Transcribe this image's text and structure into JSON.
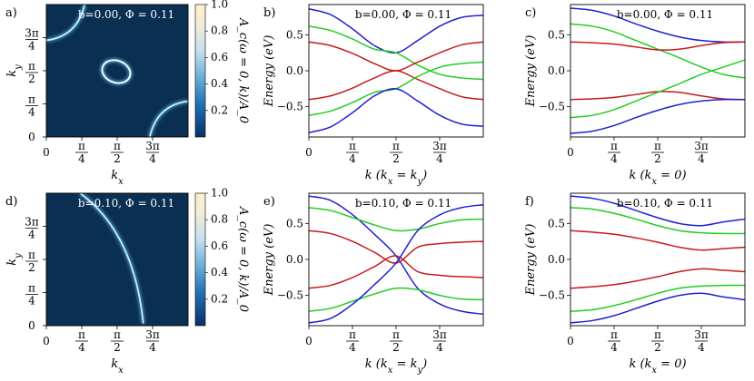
{
  "panels": {
    "a": {
      "letter": "a)",
      "annotation": "b=0.00, Φ = 0.11"
    },
    "b": {
      "letter": "b)",
      "annotation": "b=0.00, Φ = 0.11"
    },
    "c": {
      "letter": "c)",
      "annotation": "b=0.00, Φ = 0.11"
    },
    "d": {
      "letter": "d)",
      "annotation": "b=0.10, Φ = 0.11"
    },
    "e": {
      "letter": "e)",
      "annotation": "b=0.10, Φ = 0.11"
    },
    "f": {
      "letter": "f)",
      "annotation": "b=0.10, Φ = 0.11"
    }
  },
  "labels": {
    "kx": "k_x",
    "ky": "k_y",
    "energy": "Energy (eV)",
    "k_diag": "k (k_x = k_y)",
    "k_zero": "k (k_x = 0)",
    "colorbar": "A_c(ω = 0, k)/A_0"
  },
  "colors": {
    "map_bg": "#0a2f52",
    "ridge": "#7fdcff",
    "band_blue": "#1f1fd0",
    "band_green": "#22cc22",
    "band_red": "#c81a1a",
    "band_olive": "#4a8a1a",
    "band_brown": "#a0501a",
    "band_purple": "#6a3ac0"
  },
  "chart_data": [
    {
      "id": "a",
      "type": "heatmap",
      "xlabel": "k_x",
      "ylabel": "k_y",
      "xlim": [
        0,
        3.1416
      ],
      "ylim": [
        0,
        3.1416
      ],
      "xticks": [
        "0",
        "π/4",
        "π/2",
        "3π/4"
      ],
      "yticks": [
        "0",
        "π/4",
        "π/2",
        "3π/4"
      ],
      "colorbar": {
        "label": "A_c(ω = 0, k)/A_0",
        "ticks": [
          "0.2",
          "0.4",
          "0.6",
          "0.8",
          "1.0"
        ],
        "range": [
          0,
          1
        ]
      },
      "features": [
        {
          "shape": "ellipse-ring",
          "cx": 1.55,
          "cy": 1.55,
          "rx": 0.32,
          "ry": 0.26
        },
        {
          "shape": "arc",
          "corner": "top-left"
        },
        {
          "shape": "arc",
          "corner": "bottom-right"
        }
      ]
    },
    {
      "id": "b",
      "type": "line",
      "xlabel": "k (k_x = k_y)",
      "ylabel": "Energy (eV)",
      "xlim": [
        0,
        3.1416
      ],
      "ylim": [
        -0.92,
        0.92
      ],
      "xticks": [
        "0",
        "π/4",
        "π/2",
        "3π/4"
      ],
      "yticks": [
        "-0.5",
        "0.0",
        "0.5"
      ],
      "x": [
        0,
        0.39,
        0.79,
        1.18,
        1.57,
        1.96,
        2.36,
        2.75,
        3.14
      ],
      "series": [
        {
          "color": "band_blue",
          "values": [
            0.86,
            0.78,
            0.58,
            0.35,
            0.25,
            0.42,
            0.62,
            0.74,
            0.77
          ]
        },
        {
          "color": "band_green",
          "values": [
            0.62,
            0.56,
            0.44,
            0.3,
            0.25,
            0.08,
            -0.05,
            -0.1,
            -0.12
          ]
        },
        {
          "color": "band_red",
          "values": [
            0.4,
            0.35,
            0.24,
            0.1,
            0.0,
            0.12,
            0.25,
            0.36,
            0.4
          ]
        },
        {
          "color": "band_red",
          "values": [
            -0.4,
            -0.35,
            -0.24,
            -0.1,
            0.0,
            -0.12,
            -0.25,
            -0.36,
            -0.4
          ]
        },
        {
          "color": "band_green",
          "values": [
            -0.62,
            -0.56,
            -0.44,
            -0.3,
            -0.25,
            -0.08,
            0.05,
            0.1,
            0.12
          ]
        },
        {
          "color": "band_blue",
          "values": [
            -0.86,
            -0.78,
            -0.58,
            -0.35,
            -0.25,
            -0.42,
            -0.62,
            -0.74,
            -0.77
          ]
        }
      ]
    },
    {
      "id": "c",
      "type": "line",
      "xlabel": "k (k_x = 0)",
      "ylabel": "Energy (eV)",
      "xlim": [
        0,
        3.1416
      ],
      "ylim": [
        -0.92,
        0.92
      ],
      "xticks": [
        "0",
        "π/4",
        "π/2",
        "3π/4"
      ],
      "yticks": [
        "-0.5",
        "0.0",
        "0.5"
      ],
      "x": [
        0,
        0.39,
        0.79,
        1.18,
        1.57,
        1.96,
        2.36,
        2.75,
        3.14
      ],
      "series": [
        {
          "color": "band_blue",
          "values": [
            0.87,
            0.84,
            0.76,
            0.65,
            0.55,
            0.47,
            0.42,
            0.4,
            0.4
          ]
        },
        {
          "color": "band_green",
          "values": [
            0.65,
            0.62,
            0.54,
            0.42,
            0.3,
            0.18,
            0.05,
            -0.05,
            -0.1
          ]
        },
        {
          "color": "band_red",
          "values": [
            0.4,
            0.39,
            0.37,
            0.33,
            0.29,
            0.3,
            0.35,
            0.39,
            0.4
          ]
        },
        {
          "color": "band_red",
          "values": [
            -0.4,
            -0.39,
            -0.37,
            -0.33,
            -0.29,
            -0.3,
            -0.35,
            -0.39,
            -0.4
          ]
        },
        {
          "color": "band_green",
          "values": [
            -0.65,
            -0.62,
            -0.54,
            -0.42,
            -0.3,
            -0.18,
            -0.05,
            0.05,
            0.15
          ]
        },
        {
          "color": "band_blue",
          "values": [
            -0.87,
            -0.84,
            -0.76,
            -0.65,
            -0.55,
            -0.47,
            -0.42,
            -0.4,
            -0.4
          ]
        }
      ]
    },
    {
      "id": "d",
      "type": "heatmap",
      "xlabel": "k_x",
      "ylabel": "k_y",
      "xlim": [
        0,
        3.1416
      ],
      "ylim": [
        0,
        3.1416
      ],
      "xticks": [
        "0",
        "π/4",
        "π/2",
        "3π/4"
      ],
      "yticks": [
        "0",
        "π/4",
        "π/2",
        "3π/4"
      ],
      "colorbar": {
        "label": "A_c(ω = 0, k)/A_0",
        "ticks": [
          "0.2",
          "0.4",
          "0.6",
          "0.8",
          "1.0"
        ],
        "range": [
          0,
          1
        ]
      },
      "features": [
        {
          "shape": "arc",
          "from": [
            0.75,
            3.14
          ],
          "to": [
            2.15,
            0.05
          ]
        }
      ]
    },
    {
      "id": "e",
      "type": "line",
      "xlabel": "k (k_x = k_y)",
      "ylabel": "Energy (eV)",
      "xlim": [
        0,
        3.1416
      ],
      "ylim": [
        -0.92,
        0.92
      ],
      "xticks": [
        "0",
        "π/4",
        "π/2",
        "3π/4"
      ],
      "yticks": [
        "-0.5",
        "0.0",
        "0.5"
      ],
      "x": [
        0,
        0.39,
        0.79,
        1.18,
        1.57,
        1.96,
        2.36,
        2.75,
        3.14
      ],
      "series": [
        {
          "color": "band_blue",
          "values": [
            0.88,
            0.82,
            0.62,
            0.35,
            0.05,
            -0.4,
            -0.62,
            -0.72,
            -0.76
          ]
        },
        {
          "color": "band_green",
          "values": [
            0.72,
            0.68,
            0.58,
            0.48,
            0.4,
            0.42,
            0.5,
            0.55,
            0.56
          ]
        },
        {
          "color": "band_red",
          "values": [
            0.4,
            0.36,
            0.25,
            0.1,
            -0.05,
            0.17,
            0.22,
            0.24,
            0.25
          ]
        },
        {
          "color": "band_red",
          "values": [
            -0.4,
            -0.36,
            -0.25,
            -0.1,
            0.05,
            -0.17,
            -0.22,
            -0.24,
            -0.25
          ]
        },
        {
          "color": "band_green",
          "values": [
            -0.72,
            -0.68,
            -0.58,
            -0.48,
            -0.4,
            -0.42,
            -0.5,
            -0.55,
            -0.56
          ]
        },
        {
          "color": "band_blue",
          "values": [
            -0.88,
            -0.82,
            -0.62,
            -0.35,
            -0.05,
            0.4,
            0.62,
            0.72,
            0.76
          ]
        }
      ]
    },
    {
      "id": "f",
      "type": "line",
      "xlabel": "k (k_x = 0)",
      "ylabel": "Energy (eV)",
      "xlim": [
        0,
        3.1416
      ],
      "ylim": [
        -0.92,
        0.92
      ],
      "xticks": [
        "0",
        "π/4",
        "π/2",
        "3π/4"
      ],
      "yticks": [
        "-0.5",
        "0.0",
        "0.5"
      ],
      "x": [
        0,
        0.39,
        0.79,
        1.18,
        1.57,
        1.96,
        2.36,
        2.75,
        3.14
      ],
      "series": [
        {
          "color": "band_blue",
          "values": [
            0.88,
            0.85,
            0.78,
            0.68,
            0.58,
            0.5,
            0.47,
            0.52,
            0.56
          ]
        },
        {
          "color": "band_green",
          "values": [
            0.72,
            0.7,
            0.64,
            0.56,
            0.47,
            0.4,
            0.37,
            0.36,
            0.36
          ]
        },
        {
          "color": "band_red",
          "values": [
            0.4,
            0.38,
            0.35,
            0.3,
            0.24,
            0.17,
            0.13,
            0.15,
            0.17
          ]
        },
        {
          "color": "band_red",
          "values": [
            -0.4,
            -0.38,
            -0.35,
            -0.3,
            -0.24,
            -0.17,
            -0.13,
            -0.15,
            -0.17
          ]
        },
        {
          "color": "band_green",
          "values": [
            -0.72,
            -0.7,
            -0.64,
            -0.56,
            -0.47,
            -0.4,
            -0.37,
            -0.36,
            -0.36
          ]
        },
        {
          "color": "band_blue",
          "values": [
            -0.88,
            -0.85,
            -0.78,
            -0.68,
            -0.58,
            -0.5,
            -0.47,
            -0.52,
            -0.56
          ]
        }
      ]
    }
  ]
}
